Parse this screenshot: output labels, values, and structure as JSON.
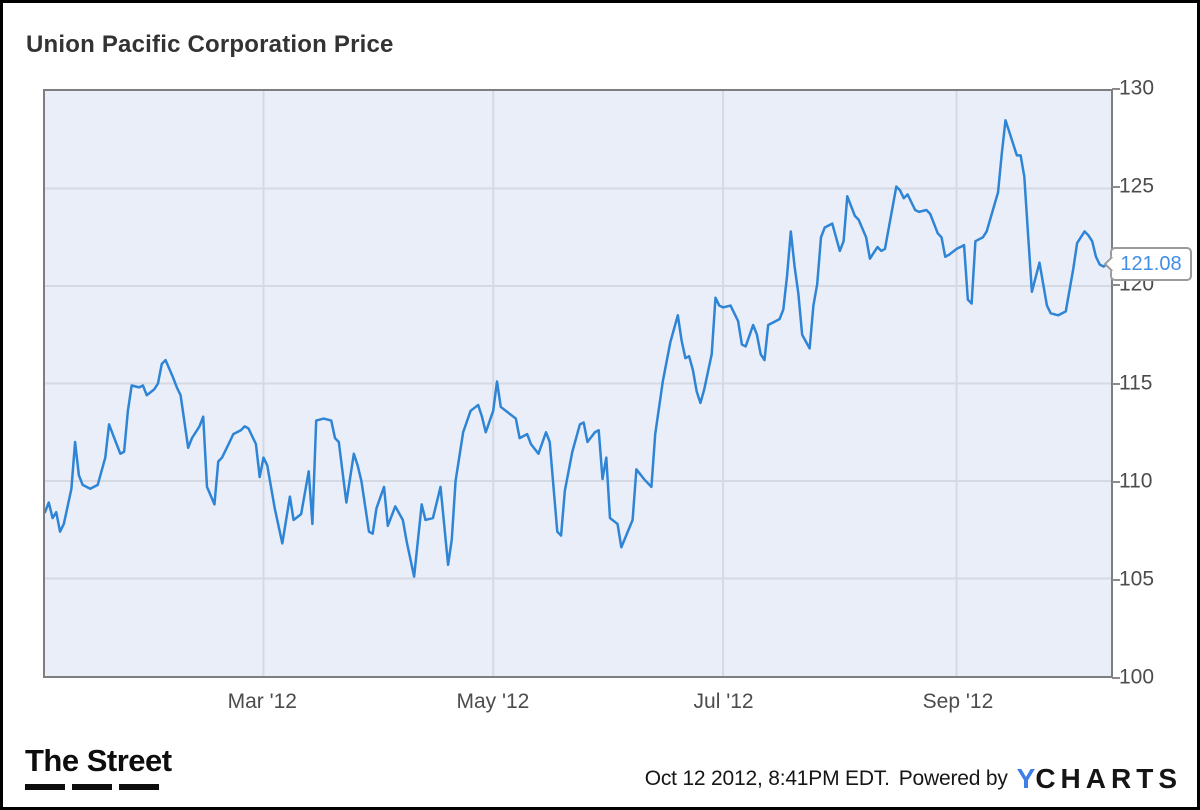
{
  "header": {
    "title": "Union Pacific Corporation Price"
  },
  "chart_data": {
    "type": "line",
    "title": "Union Pacific Corporation Price",
    "x_unit": "day of year 2012 (series spans Jan 3 2012 - Oct 12 2012)",
    "x_range": [
      3,
      286
    ],
    "ylim": [
      100,
      130
    ],
    "y_ticks": [
      130,
      125,
      120,
      115,
      110,
      105,
      100
    ],
    "y_gridlines": [
      125,
      120,
      115,
      110,
      105
    ],
    "x_ticks": [
      {
        "label": "Mar '12",
        "day": 61
      },
      {
        "label": "May '12",
        "day": 122
      },
      {
        "label": "Jul '12",
        "day": 183
      },
      {
        "label": "Sep '12",
        "day": 245
      }
    ],
    "grid": true,
    "legend": false,
    "last_price": 121.08,
    "last_price_label": "121.08",
    "colors": {
      "line": "#2e84d5",
      "plot_bg": "#e9eef9",
      "grid": "#d5d9e2",
      "plot_border": "#7e7e7e",
      "callout_text": "#418ee4",
      "tick_text": "#4c4c4c"
    },
    "points": [
      [
        3,
        108.4
      ],
      [
        4,
        108.9
      ],
      [
        5,
        108.1
      ],
      [
        6,
        108.4
      ],
      [
        7,
        107.4
      ],
      [
        8,
        107.8
      ],
      [
        10,
        109.6
      ],
      [
        11,
        112.0
      ],
      [
        12,
        110.3
      ],
      [
        13,
        109.8
      ],
      [
        15,
        109.6
      ],
      [
        17,
        109.8
      ],
      [
        19,
        111.2
      ],
      [
        20,
        112.9
      ],
      [
        22,
        111.9
      ],
      [
        23,
        111.4
      ],
      [
        24,
        111.5
      ],
      [
        25,
        113.6
      ],
      [
        26,
        114.9
      ],
      [
        28,
        114.8
      ],
      [
        29,
        114.9
      ],
      [
        30,
        114.4
      ],
      [
        32,
        114.7
      ],
      [
        33,
        115.0
      ],
      [
        34,
        116.0
      ],
      [
        35,
        116.2
      ],
      [
        37,
        115.3
      ],
      [
        38,
        114.8
      ],
      [
        39,
        114.4
      ],
      [
        41,
        111.7
      ],
      [
        42,
        112.2
      ],
      [
        44,
        112.8
      ],
      [
        45,
        113.3
      ],
      [
        46,
        109.7
      ],
      [
        48,
        108.8
      ],
      [
        49,
        111.0
      ],
      [
        50,
        111.2
      ],
      [
        52,
        112.0
      ],
      [
        53,
        112.4
      ],
      [
        55,
        112.6
      ],
      [
        56,
        112.8
      ],
      [
        57,
        112.7
      ],
      [
        59,
        111.9
      ],
      [
        60,
        110.2
      ],
      [
        61,
        111.2
      ],
      [
        62,
        110.8
      ],
      [
        64,
        108.6
      ],
      [
        66,
        106.8
      ],
      [
        68,
        109.2
      ],
      [
        69,
        108.0
      ],
      [
        71,
        108.3
      ],
      [
        73,
        110.5
      ],
      [
        74,
        107.8
      ],
      [
        75,
        113.1
      ],
      [
        77,
        113.2
      ],
      [
        79,
        113.1
      ],
      [
        80,
        112.2
      ],
      [
        81,
        112.0
      ],
      [
        83,
        108.9
      ],
      [
        85,
        111.4
      ],
      [
        86,
        110.8
      ],
      [
        87,
        110.0
      ],
      [
        89,
        107.4
      ],
      [
        90,
        107.3
      ],
      [
        91,
        108.6
      ],
      [
        93,
        109.7
      ],
      [
        94,
        107.7
      ],
      [
        96,
        108.7
      ],
      [
        98,
        108.0
      ],
      [
        99,
        106.9
      ],
      [
        101,
        105.1
      ],
      [
        103,
        108.8
      ],
      [
        104,
        108.0
      ],
      [
        106,
        108.1
      ],
      [
        108,
        109.7
      ],
      [
        110,
        105.7
      ],
      [
        111,
        107.0
      ],
      [
        112,
        110.0
      ],
      [
        114,
        112.5
      ],
      [
        116,
        113.6
      ],
      [
        118,
        113.9
      ],
      [
        119,
        113.3
      ],
      [
        120,
        112.5
      ],
      [
        122,
        113.6
      ],
      [
        123,
        115.1
      ],
      [
        124,
        113.8
      ],
      [
        126,
        113.5
      ],
      [
        128,
        113.2
      ],
      [
        129,
        112.2
      ],
      [
        131,
        112.4
      ],
      [
        132,
        111.9
      ],
      [
        134,
        111.4
      ],
      [
        136,
        112.5
      ],
      [
        137,
        112.0
      ],
      [
        139,
        107.4
      ],
      [
        140,
        107.2
      ],
      [
        141,
        109.5
      ],
      [
        143,
        111.5
      ],
      [
        145,
        112.9
      ],
      [
        146,
        113.0
      ],
      [
        147,
        112.0
      ],
      [
        149,
        112.5
      ],
      [
        150,
        112.6
      ],
      [
        151,
        110.1
      ],
      [
        152,
        111.2
      ],
      [
        153,
        108.1
      ],
      [
        155,
        107.8
      ],
      [
        156,
        106.6
      ],
      [
        159,
        108.0
      ],
      [
        160,
        110.6
      ],
      [
        162,
        110.1
      ],
      [
        163,
        109.9
      ],
      [
        164,
        109.7
      ],
      [
        165,
        112.4
      ],
      [
        167,
        115.1
      ],
      [
        169,
        117.1
      ],
      [
        171,
        118.5
      ],
      [
        172,
        117.2
      ],
      [
        173,
        116.3
      ],
      [
        174,
        116.4
      ],
      [
        175,
        115.7
      ],
      [
        176,
        114.6
      ],
      [
        177,
        114.0
      ],
      [
        178,
        114.7
      ],
      [
        180,
        116.5
      ],
      [
        181,
        119.4
      ],
      [
        182,
        119.0
      ],
      [
        183,
        118.9
      ],
      [
        185,
        119.0
      ],
      [
        186,
        118.6
      ],
      [
        187,
        118.2
      ],
      [
        188,
        117.0
      ],
      [
        189,
        116.9
      ],
      [
        191,
        118.0
      ],
      [
        192,
        117.5
      ],
      [
        193,
        116.5
      ],
      [
        194,
        116.2
      ],
      [
        195,
        118.0
      ],
      [
        197,
        118.2
      ],
      [
        198,
        118.3
      ],
      [
        199,
        118.8
      ],
      [
        200,
        120.5
      ],
      [
        201,
        122.8
      ],
      [
        202,
        121.0
      ],
      [
        203,
        119.6
      ],
      [
        204,
        117.5
      ],
      [
        206,
        116.8
      ],
      [
        207,
        119.0
      ],
      [
        208,
        120.1
      ],
      [
        209,
        122.5
      ],
      [
        210,
        123.0
      ],
      [
        212,
        123.2
      ],
      [
        214,
        121.8
      ],
      [
        215,
        122.3
      ],
      [
        216,
        124.6
      ],
      [
        218,
        123.6
      ],
      [
        219,
        123.4
      ],
      [
        221,
        122.5
      ],
      [
        222,
        121.4
      ],
      [
        224,
        122.0
      ],
      [
        225,
        121.8
      ],
      [
        226,
        121.9
      ],
      [
        229,
        125.1
      ],
      [
        230,
        124.9
      ],
      [
        231,
        124.5
      ],
      [
        232,
        124.7
      ],
      [
        234,
        123.9
      ],
      [
        235,
        123.8
      ],
      [
        237,
        123.9
      ],
      [
        238,
        123.7
      ],
      [
        240,
        122.7
      ],
      [
        241,
        122.5
      ],
      [
        242,
        121.5
      ],
      [
        243,
        121.6
      ],
      [
        245,
        121.9
      ],
      [
        246,
        122.0
      ],
      [
        247,
        122.1
      ],
      [
        248,
        119.3
      ],
      [
        249,
        119.1
      ],
      [
        250,
        122.3
      ],
      [
        252,
        122.5
      ],
      [
        253,
        122.8
      ],
      [
        256,
        124.8
      ],
      [
        257,
        126.8
      ],
      [
        258,
        128.5
      ],
      [
        259,
        127.9
      ],
      [
        260,
        127.3
      ],
      [
        261,
        126.7
      ],
      [
        262,
        126.7
      ],
      [
        263,
        125.6
      ],
      [
        264,
        122.6
      ],
      [
        265,
        119.7
      ],
      [
        267,
        121.2
      ],
      [
        269,
        119.0
      ],
      [
        270,
        118.6
      ],
      [
        272,
        118.5
      ],
      [
        274,
        118.7
      ],
      [
        276,
        120.9
      ],
      [
        277,
        122.2
      ],
      [
        279,
        122.8
      ],
      [
        280,
        122.6
      ],
      [
        281,
        122.3
      ],
      [
        282,
        121.5
      ],
      [
        283,
        121.1
      ],
      [
        284,
        121.0
      ],
      [
        285,
        121.1
      ],
      [
        286,
        121.08
      ]
    ]
  },
  "footer": {
    "thestreet": "The Street",
    "timestamp": "Oct 12 2012, 8:41PM EDT.",
    "powered_by": "Powered by",
    "ycharts": {
      "y": "Y",
      "charts": "CHARTS"
    },
    "ycharts_blue": "#3e7ee8"
  }
}
